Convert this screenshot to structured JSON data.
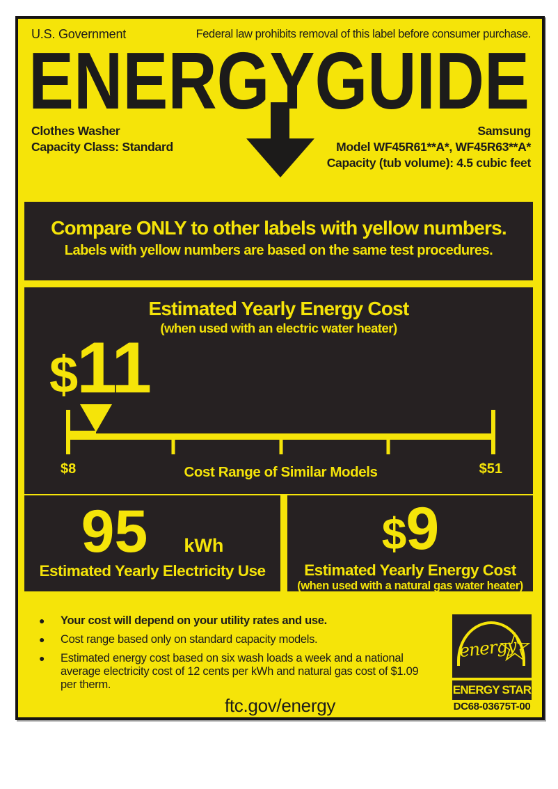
{
  "label": {
    "government": "U.S. Government",
    "federal_notice": "Federal law prohibits removal of this label before consumer purchase.",
    "title": "ENERGYGUIDE",
    "product": {
      "type": "Clothes Washer",
      "capacity_class": "Capacity Class: Standard"
    },
    "manufacturer": {
      "brand": "Samsung",
      "model": "Model WF45R61**A*, WF45R63**A*",
      "capacity": "Capacity (tub volume): 4.5 cubic feet"
    },
    "compare": {
      "line1": "Compare ONLY to other labels with yellow numbers.",
      "line2": "Labels with yellow numbers are based on the same test procedures."
    },
    "cost_box": {
      "heading": "Estimated Yearly Energy Cost",
      "subheading": "(when used with an electric water heater)",
      "currency": "$",
      "value": "11",
      "scale": {
        "min_label": "$8",
        "max_label": "$51",
        "axis_label": "Cost Range of Similar Models",
        "min_value": 8,
        "max_value": 51,
        "marker_value": 11
      }
    },
    "electricity_box": {
      "value": "95",
      "unit": "kWh",
      "caption": "Estimated Yearly Electricity Use"
    },
    "gas_box": {
      "currency": "$",
      "value": "9",
      "caption": "Estimated Yearly Energy Cost",
      "subcaption": "(when used with a natural gas water heater)"
    },
    "footnotes": [
      {
        "text": "Your cost will depend on your utility rates and use.",
        "bold": true
      },
      {
        "text": "Cost range based only on standard capacity models.",
        "bold": false
      },
      {
        "text": "Estimated energy cost based on six wash loads a week and a national average electricity cost of 12 cents per kWh and natural gas cost of $1.09 per therm.",
        "bold": false
      }
    ],
    "energy_star": {
      "script_text": "energy",
      "wordmark": "ENERGY STAR"
    },
    "part_number": "DC68-03675T-00",
    "website": "ftc.gov/energy",
    "colors": {
      "label_yellow": "#F5E409",
      "panel_black": "#262122",
      "text_black": "#1C1B1A"
    }
  }
}
